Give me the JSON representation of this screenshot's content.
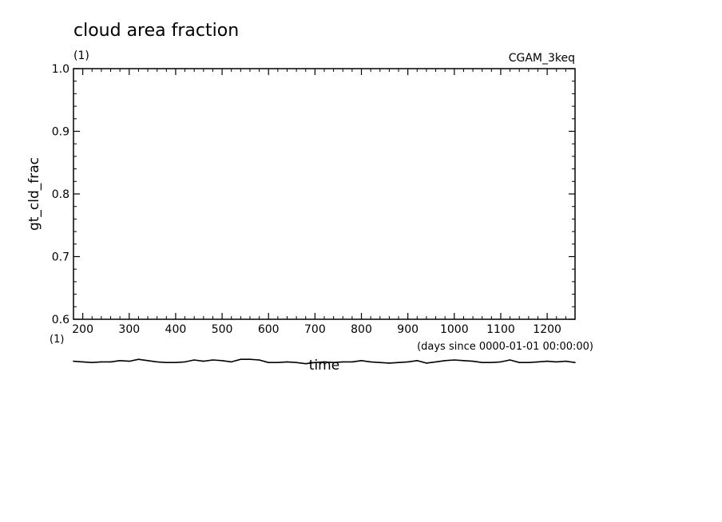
{
  "chart_data": {
    "type": "line",
    "title": "cloud area fraction",
    "y_units_label": "(1)",
    "x_units_label": "(1)",
    "experiment": "CGAM_3keq",
    "xlabel": "time",
    "xunits": "(days since 0000-01-01 00:00:00)",
    "ylabel": "gt_cld_frac",
    "xlim": [
      180,
      1260
    ],
    "ylim": [
      0.6,
      1.0
    ],
    "x_ticks": [
      "200",
      "300",
      "400",
      "500",
      "600",
      "700",
      "800",
      "900",
      "1000",
      "1100",
      "1200"
    ],
    "y_ticks": [
      "0.6",
      "0.7",
      "0.8",
      "0.9",
      "1.0"
    ],
    "grid": false,
    "series": [
      {
        "color": "#000000",
        "x": [
          180,
          200,
          220,
          240,
          260,
          280,
          300,
          320,
          340,
          360,
          380,
          400,
          420,
          440,
          460,
          480,
          500,
          520,
          540,
          560,
          580,
          600,
          620,
          640,
          660,
          680,
          700,
          720,
          740,
          760,
          780,
          800,
          820,
          840,
          860,
          880,
          900,
          920,
          940,
          960,
          980,
          1000,
          1020,
          1040,
          1060,
          1080,
          1100,
          1120,
          1140,
          1160,
          1180,
          1200,
          1220,
          1240,
          1260
        ],
        "y": [
          0.533,
          0.532,
          0.531,
          0.532,
          0.532,
          0.534,
          0.533,
          0.536,
          0.534,
          0.532,
          0.531,
          0.531,
          0.532,
          0.535,
          0.533,
          0.535,
          0.534,
          0.532,
          0.536,
          0.536,
          0.535,
          0.531,
          0.531,
          0.532,
          0.531,
          0.529,
          0.531,
          0.532,
          0.531,
          0.532,
          0.532,
          0.534,
          0.532,
          0.531,
          0.53,
          0.531,
          0.532,
          0.534,
          0.53,
          0.532,
          0.534,
          0.535,
          0.534,
          0.533,
          0.531,
          0.531,
          0.532,
          0.535,
          0.531,
          0.531,
          0.532,
          0.533,
          0.532,
          0.533,
          0.531
        ]
      }
    ]
  }
}
